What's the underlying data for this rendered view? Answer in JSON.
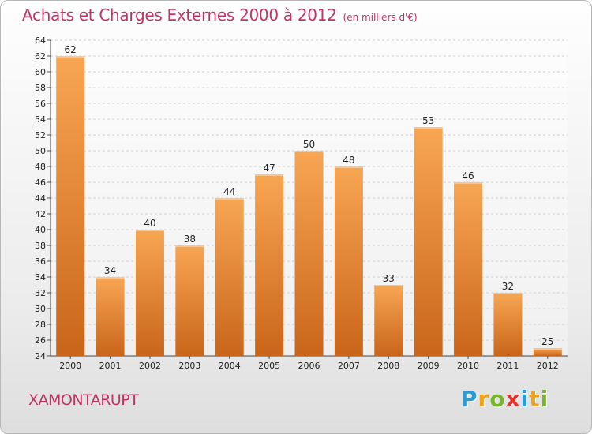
{
  "title": "Achats et Charges Externes 2000 à 2012",
  "subtitle": "(en milliers d'€)",
  "commune": "XAMONTARUPT",
  "logo": {
    "letters": [
      {
        "char": "P",
        "color": "#2a9bd6"
      },
      {
        "char": "r",
        "color": "#f0a21c"
      },
      {
        "char": "o",
        "color": "#76b72a"
      },
      {
        "char": "x",
        "color": "#e3312d"
      },
      {
        "char": "i",
        "color": "#2a9bd6"
      },
      {
        "char": "t",
        "color": "#f0a21c"
      },
      {
        "char": "i",
        "color": "#76b72a"
      }
    ]
  },
  "colors": {
    "title": "#c33262",
    "bar_light": "#f8a653",
    "bar_dark": "#c9651a",
    "grid": "#d0d0d0"
  },
  "chart_data": {
    "type": "bar",
    "title": "Achats et Charges Externes 2000 à 2012",
    "subtitle": "(en milliers d'€)",
    "categories": [
      "2000",
      "2001",
      "2002",
      "2003",
      "2004",
      "2005",
      "2006",
      "2007",
      "2008",
      "2009",
      "2010",
      "2011",
      "2012"
    ],
    "values": [
      62,
      34,
      40,
      38,
      44,
      47,
      50,
      48,
      33,
      53,
      46,
      32,
      25
    ],
    "ylim": [
      24,
      64
    ],
    "yticks": [
      24,
      26,
      28,
      30,
      32,
      34,
      36,
      38,
      40,
      42,
      44,
      46,
      48,
      50,
      52,
      54,
      56,
      58,
      60,
      62,
      64
    ],
    "grid": "horizontal dashed",
    "xlabel": "",
    "ylabel": ""
  }
}
